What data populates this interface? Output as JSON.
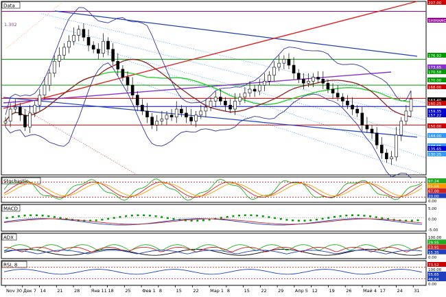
{
  "chart_data": [
    {
      "panel": "price",
      "type": "candlestick",
      "title": "Data",
      "annotation": "1.302",
      "ylim": [
        125,
        212
      ],
      "overlays": [
        "moving averages",
        "bollinger bands",
        "trend channels",
        "horizontal levels"
      ],
      "x_tick_labels": [
        "Nov 30",
        "Дек 7",
        "14",
        "21",
        "28",
        "Янв 11",
        "18",
        "25",
        "Фев 1",
        "8",
        "15",
        "22",
        "Мар 1",
        "8",
        "15",
        "22",
        "29",
        "Апр 5",
        "12",
        "19",
        "26",
        "Май 4",
        "17",
        "24",
        "31"
      ],
      "right_axis_labels": [
        "207.00",
        "SHIMAMOTO",
        "176.92",
        "173.65",
        "170.58",
        "170.00",
        "168.00",
        "163.40",
        "160.25",
        "159.35",
        "157.22",
        "150.00",
        "144.00",
        "138.65",
        "135.65",
        "130.25"
      ],
      "closes": [
        152,
        158,
        159,
        155,
        149,
        156,
        160,
        165,
        170,
        176,
        182,
        185,
        189,
        192,
        195,
        198,
        194,
        190,
        188,
        186,
        192,
        188,
        182,
        178,
        174,
        170,
        165,
        160,
        157,
        154,
        150,
        152,
        153,
        155,
        154,
        158,
        156,
        154,
        152,
        155,
        157,
        159,
        162,
        164,
        162,
        160,
        158,
        162,
        164,
        166,
        168,
        167,
        170,
        172,
        175,
        179,
        181,
        183,
        180,
        176,
        173,
        171,
        172,
        174,
        173,
        171,
        168,
        166,
        164,
        162,
        160,
        158,
        156,
        150,
        148,
        146,
        140,
        136,
        133,
        134,
        145,
        152,
        157,
        163
      ]
    },
    {
      "panel": "stochastic",
      "type": "line",
      "title": "Stochastic",
      "ylim": [
        0,
        100
      ],
      "right_axis_labels": [
        "97.24",
        "85.84",
        "67.00",
        "20.00",
        "0.00"
      ]
    },
    {
      "panel": "macd",
      "type": "line",
      "title": "MACD",
      "ylim": [
        -5,
        5
      ],
      "right_axis_labels": [
        "5.00",
        "0.00",
        "-5.00"
      ]
    },
    {
      "panel": "adx",
      "type": "line",
      "title": "ADX",
      "ylim": [
        0,
        100
      ],
      "right_axis_labels": [
        "100.00",
        "29.95",
        "23.91",
        "15.35",
        "0.00"
      ]
    },
    {
      "panel": "rsi",
      "type": "line",
      "title": "RSI, 8",
      "ylim": [
        0,
        100
      ],
      "right_axis_labels": [
        "73.52",
        "100.00",
        "55.65",
        "46.64",
        "0.00"
      ]
    }
  ]
}
